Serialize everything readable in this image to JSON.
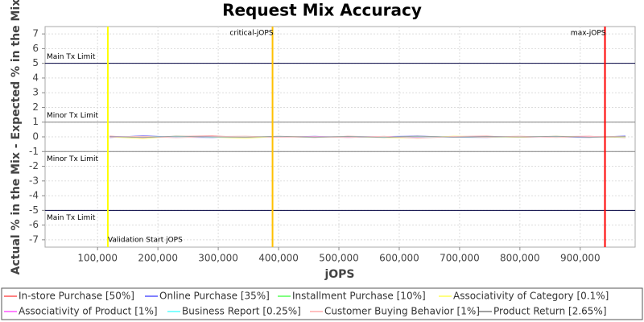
{
  "chart_data": {
    "type": "line",
    "title": "Request Mix Accuracy",
    "x_label": "jOPS",
    "y_label": "Actual % in the Mix - Expected % in the Mix",
    "xlim": [
      13000,
      991000
    ],
    "ylim": [
      -7.5,
      7.5
    ],
    "xticks": [
      {
        "value": 100000,
        "label": "100,000"
      },
      {
        "value": 200000,
        "label": "200,000"
      },
      {
        "value": 300000,
        "label": "300,000"
      },
      {
        "value": 400000,
        "label": "400,000"
      },
      {
        "value": 500000,
        "label": "500,000"
      },
      {
        "value": 600000,
        "label": "600,000"
      },
      {
        "value": 700000,
        "label": "700,000"
      },
      {
        "value": 800000,
        "label": "800,000"
      },
      {
        "value": 900000,
        "label": "900,000"
      }
    ],
    "yticks": [
      -7,
      -6,
      -5,
      -4,
      -3,
      -2,
      -1,
      0,
      1,
      2,
      3,
      4,
      5,
      6,
      7
    ],
    "grid": true,
    "hlines": [
      {
        "label": "Main Tx Limit",
        "value": 5,
        "color": "#000040"
      },
      {
        "label": "Minor Tx Limit",
        "value": 1,
        "color": "#808080"
      },
      {
        "label": "Minor Tx Limit",
        "value": -1,
        "color": "#808080"
      },
      {
        "label": "Main Tx Limit",
        "value": -5,
        "color": "#000040"
      }
    ],
    "vlines": [
      {
        "label": "Validation Start jOPS",
        "value": 117000,
        "color": "#ffff00"
      },
      {
        "label": "critical-jOPS",
        "value": 390000,
        "color": "#ffc000"
      },
      {
        "label": "max-jOPS",
        "value": 941000,
        "color": "#ff0000"
      }
    ],
    "x": [
      120000,
      175000,
      230000,
      290000,
      345000,
      400000,
      460000,
      515000,
      575000,
      630000,
      690000,
      745000,
      800000,
      860000,
      915000,
      975000
    ],
    "series": [
      {
        "name": "In-store Purchase [50%]",
        "color": "#ff8080",
        "values": [
          0.05,
          -0.05,
          0.03,
          0.06,
          -0.02,
          0.02,
          -0.04,
          0.04,
          0.0,
          -0.05,
          0.03,
          0.05,
          -0.03,
          0.02,
          0.04,
          -0.05
        ]
      },
      {
        "name": "Online Purchase [35%]",
        "color": "#8080ff",
        "values": [
          -0.05,
          0.08,
          -0.02,
          -0.05,
          0.02,
          -0.03,
          0.04,
          -0.04,
          0.02,
          0.06,
          -0.03,
          -0.04,
          0.03,
          -0.02,
          -0.04,
          0.06
        ]
      },
      {
        "name": "Installment Purchase [10%]",
        "color": "#80ff80",
        "values": [
          0.02,
          -0.03,
          0.0,
          0.02,
          -0.01,
          0.02,
          -0.02,
          0.01,
          -0.02,
          0.02,
          0.0,
          -0.02,
          0.01,
          0.02,
          -0.01,
          0.01
        ]
      },
      {
        "name": "Associativity of Category [0.1%]",
        "color": "#ffff80",
        "values": [
          0.0,
          -0.12,
          0.05,
          -0.02,
          -0.1,
          0.03,
          0.0,
          0.02,
          -0.05,
          -0.08,
          0.05,
          0.0,
          -0.03,
          0.04,
          0.0,
          -0.03
        ]
      },
      {
        "name": "Associativity of Product [1%]",
        "color": "#ff80ff",
        "values": [
          0.03,
          0.0,
          -0.02,
          0.03,
          0.01,
          -0.01,
          0.02,
          0.0,
          0.02,
          -0.02,
          0.01,
          0.02,
          0.0,
          -0.01,
          0.02,
          0.0
        ]
      },
      {
        "name": "Business Report [0.25%]",
        "color": "#80ffff",
        "values": [
          0.0,
          0.02,
          0.01,
          -0.02,
          0.0,
          0.01,
          -0.01,
          0.02,
          0.0,
          0.01,
          -0.01,
          0.0,
          0.02,
          0.0,
          -0.01,
          0.01
        ]
      },
      {
        "name": "Customer Buying Behavior [1%]",
        "color": "#ffc0c0",
        "values": [
          -0.02,
          0.04,
          -0.06,
          0.02,
          0.05,
          -0.03,
          0.01,
          -0.05,
          0.04,
          -0.1,
          0.02,
          -0.02,
          0.05,
          -0.04,
          0.02,
          0.03
        ]
      },
      {
        "name": "Product Return [2.65%]",
        "color": "#a0a0a0",
        "values": [
          0.02,
          -0.04,
          0.05,
          0.0,
          -0.03,
          0.04,
          -0.02,
          0.03,
          -0.04,
          0.05,
          -0.02,
          0.03,
          -0.01,
          0.04,
          -0.03,
          0.02
        ]
      }
    ]
  }
}
